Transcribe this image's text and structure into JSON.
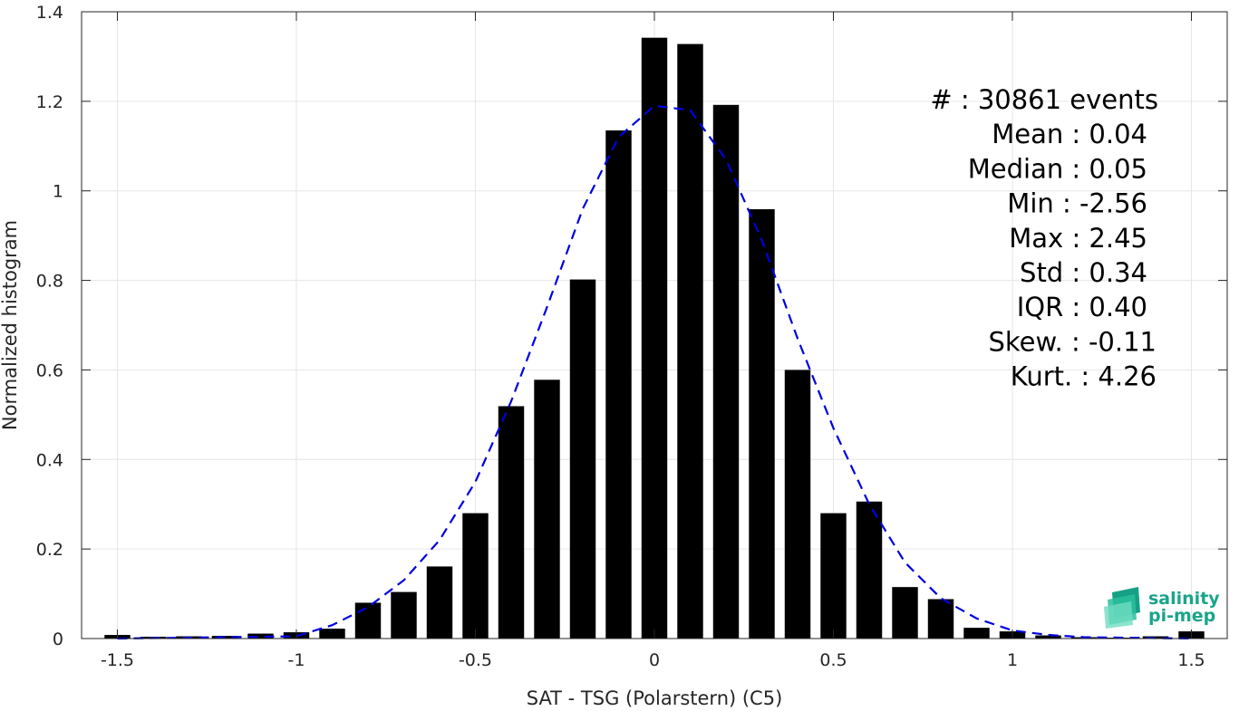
{
  "chart_data": {
    "type": "bar",
    "xlabel": "SAT - TSG (Polarstern) (C5)",
    "ylabel": "Normalized histogram",
    "xlim": [
      -1.6,
      1.6
    ],
    "ylim": [
      0,
      1.4
    ],
    "xticks": [
      -1.5,
      -1,
      -0.5,
      0,
      0.5,
      1,
      1.5
    ],
    "xtick_labels": [
      "-1.5",
      "-1",
      "-0.5",
      "0",
      "0.5",
      "1",
      "1.5"
    ],
    "yticks": [
      0,
      0.2,
      0.4,
      0.6,
      0.8,
      1,
      1.2,
      1.4
    ],
    "ytick_labels": [
      "0",
      "0.2",
      "0.4",
      "0.6",
      "0.8",
      "1",
      "1.2",
      "1.4"
    ],
    "grid": true,
    "bar_color": "#000000",
    "bins": [
      {
        "x": -1.5,
        "value": 0.008
      },
      {
        "x": -1.4,
        "value": 0.004
      },
      {
        "x": -1.3,
        "value": 0.005
      },
      {
        "x": -1.2,
        "value": 0.006
      },
      {
        "x": -1.1,
        "value": 0.011
      },
      {
        "x": -1.0,
        "value": 0.014
      },
      {
        "x": -0.9,
        "value": 0.022
      },
      {
        "x": -0.8,
        "value": 0.08
      },
      {
        "x": -0.7,
        "value": 0.104
      },
      {
        "x": -0.6,
        "value": 0.161
      },
      {
        "x": -0.5,
        "value": 0.28
      },
      {
        "x": -0.4,
        "value": 0.519
      },
      {
        "x": -0.3,
        "value": 0.578
      },
      {
        "x": -0.2,
        "value": 0.802
      },
      {
        "x": -0.1,
        "value": 1.135
      },
      {
        "x": 0.0,
        "value": 1.342
      },
      {
        "x": 0.1,
        "value": 1.328
      },
      {
        "x": 0.2,
        "value": 1.192
      },
      {
        "x": 0.3,
        "value": 0.959
      },
      {
        "x": 0.4,
        "value": 0.6
      },
      {
        "x": 0.5,
        "value": 0.28
      },
      {
        "x": 0.6,
        "value": 0.306
      },
      {
        "x": 0.7,
        "value": 0.115
      },
      {
        "x": 0.8,
        "value": 0.088
      },
      {
        "x": 0.9,
        "value": 0.024
      },
      {
        "x": 1.0,
        "value": 0.016
      },
      {
        "x": 1.1,
        "value": 0.007
      },
      {
        "x": 1.2,
        "value": 0.003
      },
      {
        "x": 1.3,
        "value": 0.002
      },
      {
        "x": 1.4,
        "value": 0.005
      },
      {
        "x": 1.5,
        "value": 0.016
      }
    ],
    "fit_curve": {
      "style": "dashed",
      "color": "#0000e0",
      "points": [
        {
          "x": -1.5,
          "y": 0.0
        },
        {
          "x": -1.0,
          "y": 0.005
        },
        {
          "x": -0.9,
          "y": 0.03
        },
        {
          "x": -0.8,
          "y": 0.07
        },
        {
          "x": -0.7,
          "y": 0.13
        },
        {
          "x": -0.6,
          "y": 0.22
        },
        {
          "x": -0.5,
          "y": 0.35
        },
        {
          "x": -0.4,
          "y": 0.53
        },
        {
          "x": -0.3,
          "y": 0.74
        },
        {
          "x": -0.2,
          "y": 0.96
        },
        {
          "x": -0.1,
          "y": 1.12
        },
        {
          "x": 0.0,
          "y": 1.19
        },
        {
          "x": 0.1,
          "y": 1.18
        },
        {
          "x": 0.2,
          "y": 1.07
        },
        {
          "x": 0.3,
          "y": 0.89
        },
        {
          "x": 0.4,
          "y": 0.67
        },
        {
          "x": 0.5,
          "y": 0.47
        },
        {
          "x": 0.6,
          "y": 0.3
        },
        {
          "x": 0.7,
          "y": 0.17
        },
        {
          "x": 0.8,
          "y": 0.09
        },
        {
          "x": 0.9,
          "y": 0.045
        },
        {
          "x": 1.0,
          "y": 0.018
        },
        {
          "x": 1.1,
          "y": 0.008
        },
        {
          "x": 1.2,
          "y": 0.003
        },
        {
          "x": 1.5,
          "y": 0.0
        }
      ]
    },
    "stats": [
      "#  : 30861 events",
      "Mean : 0.04",
      "Median : 0.05",
      "Min : -2.56",
      "Max : 2.45",
      "Std : 0.34",
      "IQR : 0.40",
      "Skew. : -0.11",
      "Kurt. : 4.26"
    ]
  },
  "logo": {
    "line1": "salinity",
    "line2": "pi-mep",
    "color": "#1aa58a"
  }
}
